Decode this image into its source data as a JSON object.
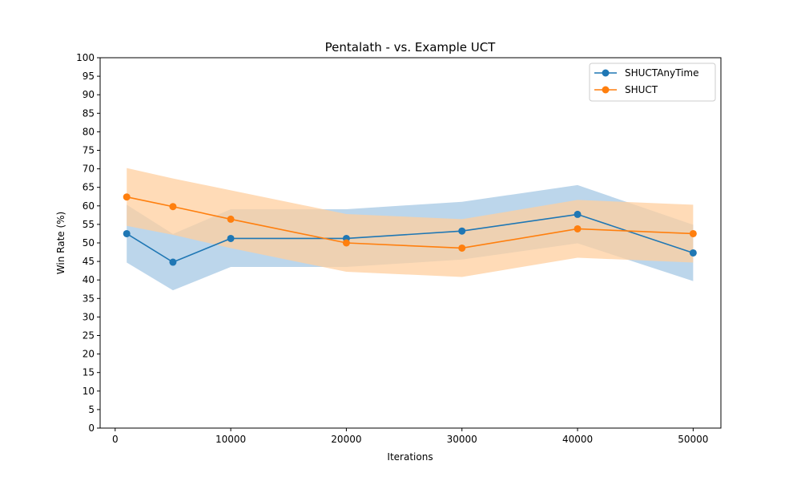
{
  "chart_data": {
    "type": "line",
    "title": "Pentalath - vs. Example UCT",
    "xlabel": "Iterations",
    "ylabel": "Win Rate (%)",
    "xlim": [
      -1300,
      52400
    ],
    "ylim": [
      0,
      100
    ],
    "x_ticks": [
      0,
      10000,
      20000,
      30000,
      40000,
      50000
    ],
    "y_ticks": [
      0,
      5,
      10,
      15,
      20,
      25,
      30,
      35,
      40,
      45,
      50,
      55,
      60,
      65,
      70,
      75,
      80,
      85,
      90,
      95,
      100
    ],
    "grid": false,
    "legend_position": "top-right",
    "x": [
      1000,
      5000,
      10000,
      20000,
      30000,
      40000,
      50000
    ],
    "series": [
      {
        "name": "SHUCTAnyTime",
        "color": "#1f77b4",
        "band_color": "#a6c8e4",
        "values": [
          52.5,
          44.8,
          51.2,
          51.2,
          53.2,
          57.7,
          47.3
        ],
        "lower": [
          44.7,
          37.2,
          43.5,
          43.5,
          45.5,
          49.9,
          39.7
        ],
        "upper": [
          60.3,
          52.4,
          59.1,
          59.1,
          61.1,
          65.6,
          54.9
        ]
      },
      {
        "name": "SHUCT",
        "color": "#ff7f0e",
        "band_color": "#ffcf9f",
        "values": [
          62.4,
          59.8,
          56.4,
          50.0,
          48.6,
          53.8,
          52.5
        ],
        "lower": [
          54.6,
          52.2,
          48.6,
          42.2,
          40.8,
          46.0,
          44.7
        ],
        "upper": [
          70.2,
          67.4,
          64.2,
          57.8,
          56.4,
          61.6,
          60.3
        ]
      }
    ]
  }
}
